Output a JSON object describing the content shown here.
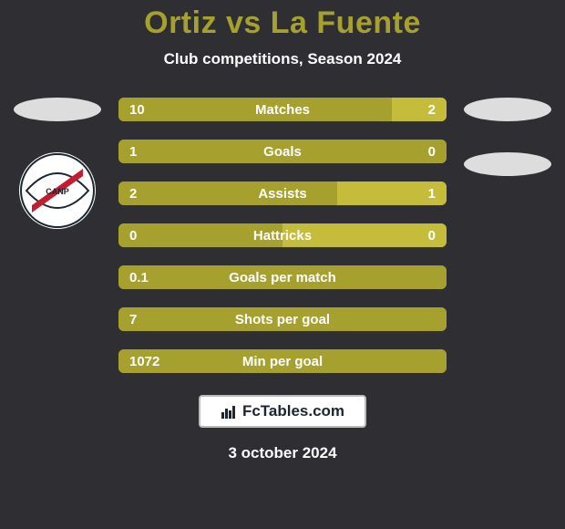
{
  "colors": {
    "background": "#2f2e33",
    "title": "#a6a12e",
    "text": "#ffffff",
    "bar_left": "#a6a12e",
    "bar_right": "#c5bc3b",
    "bar_track": "#a6a12e",
    "ellipse": "#dddddd",
    "footer_border": "#bbbbbb",
    "footer_bg": "#ffffff",
    "footer_text": "#1b2630",
    "badge_stripe": "#c21e2f",
    "badge_outline": "#1b2630"
  },
  "title": "Ortiz vs La Fuente",
  "subtitle": "Club competitions, Season 2024",
  "left": {
    "name": "Ortiz"
  },
  "right": {
    "name": "La Fuente"
  },
  "metrics": [
    {
      "label": "Matches",
      "left_val": "10",
      "right_val": "2",
      "left_pct": 83.3,
      "right_pct": 16.7
    },
    {
      "label": "Goals",
      "left_val": "1",
      "right_val": "0",
      "left_pct": 100,
      "right_pct": 0
    },
    {
      "label": "Assists",
      "left_val": "2",
      "right_val": "1",
      "left_pct": 66.7,
      "right_pct": 33.3
    },
    {
      "label": "Hattricks",
      "left_val": "0",
      "right_val": "0",
      "left_pct": 50,
      "right_pct": 50
    },
    {
      "label": "Goals per match",
      "left_val": "0.1",
      "right_val": "",
      "left_pct": 100,
      "right_pct": 0
    },
    {
      "label": "Shots per goal",
      "left_val": "7",
      "right_val": "",
      "left_pct": 100,
      "right_pct": 0
    },
    {
      "label": "Min per goal",
      "left_val": "1072",
      "right_val": "",
      "left_pct": 100,
      "right_pct": 0
    }
  ],
  "footer_logo_text": "FcTables.com",
  "footer_date": "3 october 2024"
}
